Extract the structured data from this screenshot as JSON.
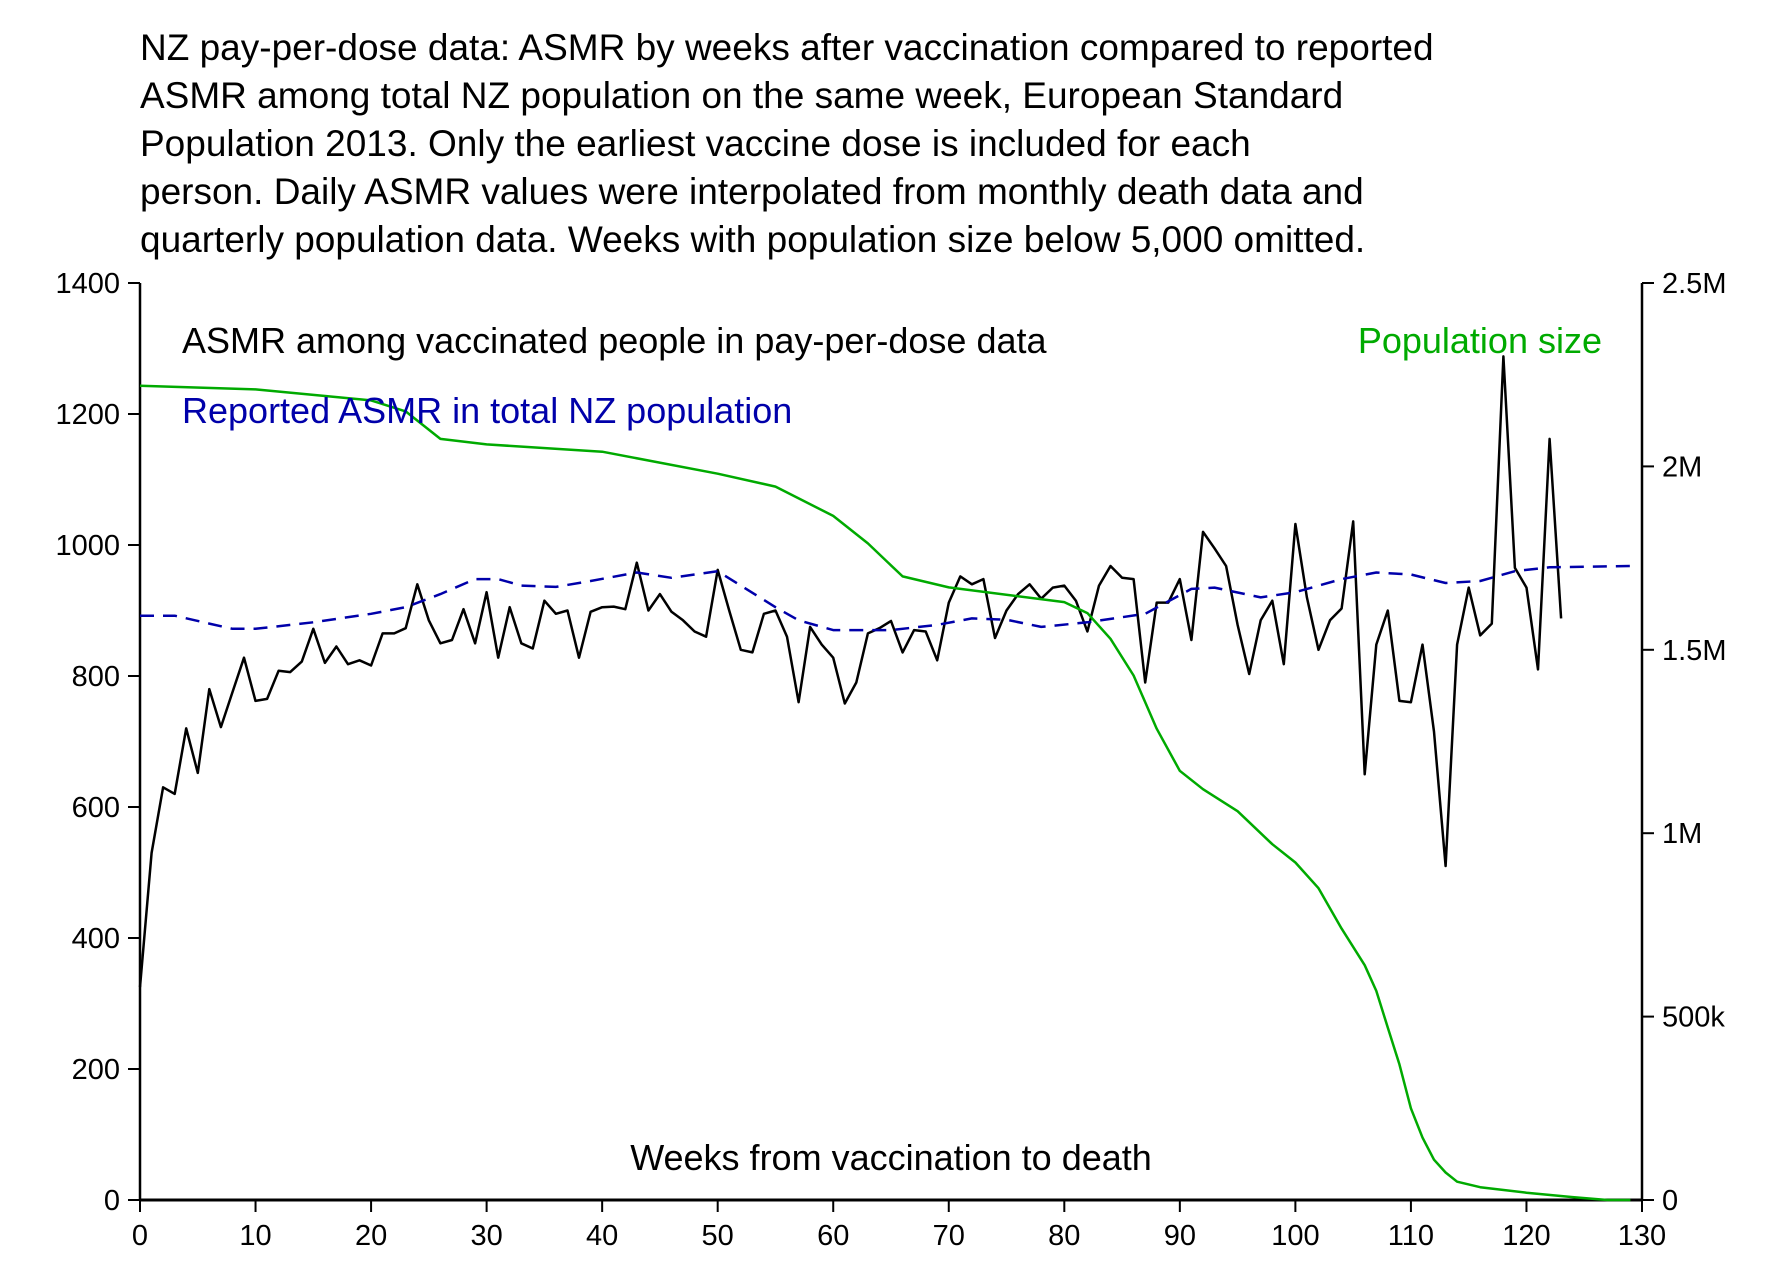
{
  "chart_data": {
    "type": "line",
    "title_lines": [
      "NZ pay-per-dose data: ASMR by weeks after vaccination compared to reported",
      "ASMR among total NZ population on the same week, European Standard",
      "Population 2013. Only the earliest vaccine dose is included for each",
      "person. Daily ASMR values were interpolated from monthly death data and",
      "quarterly population data. Weeks with population size below 5,000 omitted."
    ],
    "xlabel": "Weeks from vaccination to death",
    "xlim": [
      0,
      130
    ],
    "ylim_left": [
      0,
      1400
    ],
    "ylim_right": [
      0,
      2500000
    ],
    "x_ticks": [
      "0",
      "10",
      "20",
      "30",
      "40",
      "50",
      "60",
      "70",
      "80",
      "90",
      "100",
      "110",
      "120",
      "130"
    ],
    "y_ticks_left": [
      "0",
      "200",
      "400",
      "600",
      "800",
      "1000",
      "1200",
      "1400"
    ],
    "y_ticks_right": [
      "0",
      "500k",
      "1M",
      "1.5M",
      "2M",
      "2.5M"
    ],
    "grid": false,
    "legend_placement": "in-plot top",
    "series": [
      {
        "name": "ASMR among vaccinated people in pay-per-dose data",
        "color": "#000000",
        "axis": "left",
        "style": "solid",
        "x_start": 0,
        "values": [
          325,
          530,
          630,
          620,
          720,
          652,
          780,
          722,
          775,
          828,
          762,
          765,
          808,
          806,
          822,
          872,
          820,
          845,
          818,
          824,
          816,
          865,
          865,
          873,
          940,
          885,
          850,
          855,
          902,
          850,
          928,
          828,
          905,
          850,
          842,
          915,
          895,
          900,
          828,
          898,
          905,
          906,
          902,
          973,
          900,
          925,
          898,
          885,
          868,
          860,
          962,
          900,
          840,
          836,
          895,
          900,
          860,
          760,
          875,
          848,
          828,
          758,
          790,
          865,
          873,
          884,
          836,
          870,
          868,
          824,
          912,
          952,
          940,
          948,
          858,
          900,
          925,
          940,
          918,
          935,
          938,
          915,
          868,
          938,
          968,
          950,
          948,
          790,
          912,
          912,
          948,
          855,
          1020,
          995,
          968,
          878,
          803,
          885,
          915,
          818,
          1032,
          920,
          840,
          885,
          903,
          1036,
          650,
          848,
          900,
          762,
          760,
          848,
          715,
          510,
          848,
          935,
          862,
          880,
          1288,
          965,
          935,
          810,
          1162,
          888
        ]
      },
      {
        "name": "Reported ASMR in total NZ population",
        "color": "#0000aa",
        "axis": "left",
        "style": "dashed",
        "points": [
          [
            0,
            892
          ],
          [
            3,
            892
          ],
          [
            6,
            880
          ],
          [
            8,
            872
          ],
          [
            10,
            872
          ],
          [
            15,
            882
          ],
          [
            20,
            895
          ],
          [
            23,
            905
          ],
          [
            26,
            925
          ],
          [
            29,
            948
          ],
          [
            31,
            948
          ],
          [
            33,
            938
          ],
          [
            36,
            936
          ],
          [
            39,
            945
          ],
          [
            43,
            958
          ],
          [
            46,
            950
          ],
          [
            50,
            960
          ],
          [
            52,
            938
          ],
          [
            55,
            905
          ],
          [
            57,
            885
          ],
          [
            60,
            870
          ],
          [
            65,
            870
          ],
          [
            69,
            878
          ],
          [
            72,
            888
          ],
          [
            75,
            886
          ],
          [
            78,
            875
          ],
          [
            82,
            882
          ],
          [
            87,
            895
          ],
          [
            91,
            933
          ],
          [
            93,
            935
          ],
          [
            97,
            920
          ],
          [
            100,
            928
          ],
          [
            104,
            948
          ],
          [
            107,
            958
          ],
          [
            110,
            955
          ],
          [
            113,
            942
          ],
          [
            116,
            945
          ],
          [
            119,
            960
          ],
          [
            122,
            966
          ],
          [
            129,
            968
          ]
        ]
      },
      {
        "name": "Population size",
        "color": "#00aa00",
        "axis": "right",
        "style": "solid",
        "points": [
          [
            0,
            2220000
          ],
          [
            10,
            2210000
          ],
          [
            20,
            2180000
          ],
          [
            23,
            2150000
          ],
          [
            26,
            2075000
          ],
          [
            30,
            2060000
          ],
          [
            40,
            2040000
          ],
          [
            50,
            1980000
          ],
          [
            55,
            1945000
          ],
          [
            60,
            1865000
          ],
          [
            63,
            1790000
          ],
          [
            66,
            1700000
          ],
          [
            70,
            1670000
          ],
          [
            80,
            1630000
          ],
          [
            82,
            1600000
          ],
          [
            84,
            1530000
          ],
          [
            86,
            1430000
          ],
          [
            88,
            1285000
          ],
          [
            90,
            1170000
          ],
          [
            92,
            1120000
          ],
          [
            95,
            1060000
          ],
          [
            98,
            970000
          ],
          [
            100,
            920000
          ],
          [
            102,
            850000
          ],
          [
            104,
            740000
          ],
          [
            106,
            640000
          ],
          [
            107,
            570000
          ],
          [
            108,
            470000
          ],
          [
            109,
            370000
          ],
          [
            110,
            250000
          ],
          [
            111,
            170000
          ],
          [
            112,
            110000
          ],
          [
            113,
            75000
          ],
          [
            114,
            50000
          ],
          [
            116,
            35000
          ],
          [
            120,
            20000
          ],
          [
            124,
            8000
          ],
          [
            127,
            0
          ],
          [
            129,
            0
          ]
        ]
      }
    ]
  }
}
